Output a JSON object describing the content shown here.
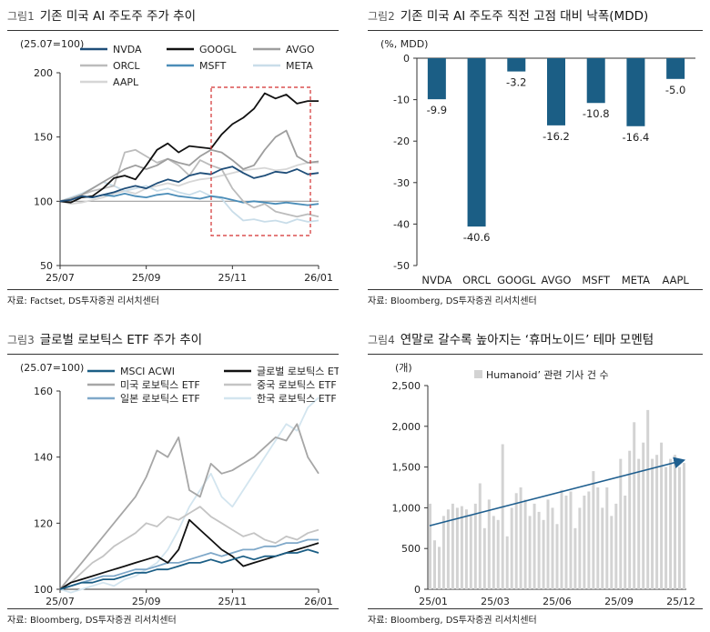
{
  "panels": [
    {
      "tag": "그림1",
      "title": "기존 미국 AI 주도주 주가 추이",
      "source": "자료: Factset, DS투자증권 리서치센터",
      "chart_data": {
        "type": "line",
        "unit": "(25.07=100)",
        "x_ticks": [
          "25/07",
          "25/09",
          "25/11",
          "26/01"
        ],
        "y_ticks": [
          50,
          100,
          150,
          200
        ],
        "ylim": [
          50,
          200
        ],
        "legend_placement": "top",
        "series": [
          {
            "name": "NVDA",
            "color": "#1f4e79",
            "values": [
              100,
              101,
              104,
              103,
              105,
              107,
              110,
              112,
              110,
              114,
              117,
              115,
              120,
              122,
              121,
              125,
              127,
              122,
              118,
              120,
              123,
              122,
              125,
              121,
              122
            ]
          },
          {
            "name": "GOOGL",
            "color": "#111111",
            "values": [
              100,
              99,
              103,
              104,
              110,
              118,
              120,
              117,
              128,
              140,
              145,
              138,
              143,
              142,
              141,
              152,
              160,
              165,
              172,
              184,
              180,
              183,
              176,
              178,
              178
            ]
          },
          {
            "name": "AVGO",
            "color": "#9e9e9e",
            "values": [
              100,
              102,
              105,
              110,
              115,
              120,
              125,
              128,
              125,
              128,
              133,
              130,
              128,
              135,
              140,
              138,
              132,
              125,
              128,
              140,
              150,
              155,
              135,
              130,
              131
            ]
          },
          {
            "name": "ORCL",
            "color": "#bcbcbc",
            "values": [
              100,
              102,
              105,
              108,
              110,
              112,
              138,
              140,
              135,
              130,
              133,
              128,
              120,
              132,
              128,
              125,
              110,
              100,
              95,
              98,
              92,
              90,
              88,
              90,
              88
            ]
          },
          {
            "name": "MSFT",
            "color": "#4b8db8",
            "values": [
              100,
              102,
              104,
              103,
              105,
              104,
              106,
              104,
              103,
              105,
              106,
              104,
              103,
              102,
              104,
              103,
              101,
              99,
              100,
              99,
              98,
              99,
              98,
              97,
              98
            ]
          },
          {
            "name": "META",
            "color": "#c9dde9",
            "values": [
              100,
              103,
              106,
              110,
              115,
              112,
              108,
              110,
              112,
              108,
              110,
              107,
              105,
              108,
              104,
              102,
              92,
              85,
              86,
              84,
              85,
              83,
              86,
              84,
              85
            ]
          },
          {
            "name": "AAPL",
            "color": "#d6d6d6",
            "values": [
              100,
              98,
              99,
              101,
              103,
              106,
              108,
              106,
              110,
              112,
              114,
              112,
              115,
              117,
              118,
              120,
              122,
              124,
              125,
              126,
              124,
              125,
              128,
              130,
              130
            ]
          }
        ]
      }
    },
    {
      "tag": "그림2",
      "title": "기존 미국 AI 주도주 직전 고점 대비 낙폭(MDD)",
      "source": "자료: Bloomberg, DS투자증권 리서치센터",
      "chart_data": {
        "type": "bar",
        "unit": "(%, MDD)",
        "categories": [
          "NVDA",
          "ORCL",
          "GOOGL",
          "AVGO",
          "MSFT",
          "META",
          "AAPL"
        ],
        "values": [
          -9.9,
          -40.6,
          -3.2,
          -16.2,
          -10.8,
          -16.4,
          -5.0
        ],
        "value_labels": [
          "-9.9",
          "-40.6",
          "-3.2",
          "-16.2",
          "-10.8",
          "-16.4",
          "-5.0"
        ],
        "y_ticks": [
          0,
          -10,
          -20,
          -30,
          -40,
          -50
        ],
        "ylim": [
          -50,
          0
        ],
        "bar_color": "#1b5e85"
      }
    },
    {
      "tag": "그림3",
      "title": "글로벌 로보틱스 ETF 주가 추이",
      "source": "자료: Bloomberg, DS투자증권 리서치센터",
      "chart_data": {
        "type": "line",
        "unit": "(25.07=100)",
        "x_ticks": [
          "25/07",
          "25/09",
          "25/11",
          "26/01"
        ],
        "y_ticks": [
          100,
          120,
          140,
          160
        ],
        "ylim": [
          100,
          160
        ],
        "legend_placement": "top",
        "series": [
          {
            "name": "MSCI ACWI",
            "color": "#1b5e85",
            "values": [
              100,
              101,
              102,
              102,
              103,
              103,
              104,
              105,
              105,
              106,
              106,
              107,
              108,
              108,
              109,
              108,
              109,
              110,
              109,
              110,
              110,
              111,
              111,
              112,
              111
            ]
          },
          {
            "name": "글로벌 로보틱스 ETF",
            "color": "#111111",
            "values": [
              100,
              102,
              103,
              104,
              105,
              106,
              107,
              108,
              109,
              110,
              108,
              112,
              121,
              118,
              115,
              112,
              110,
              107,
              108,
              109,
              110,
              111,
              112,
              113,
              114
            ]
          },
          {
            "name": "미국 로보틱스 ETF",
            "color": "#a6a6a6",
            "values": [
              100,
              104,
              108,
              112,
              116,
              120,
              124,
              128,
              134,
              142,
              140,
              146,
              130,
              128,
              138,
              135,
              136,
              138,
              140,
              143,
              146,
              145,
              150,
              140,
              135
            ]
          },
          {
            "name": "중국 로보틱스 ETF",
            "color": "#c4c4c4",
            "values": [
              100,
              102,
              105,
              108,
              110,
              113,
              115,
              117,
              120,
              119,
              122,
              121,
              123,
              125,
              122,
              120,
              118,
              116,
              117,
              115,
              114,
              116,
              115,
              117,
              118
            ]
          },
          {
            "name": "일본 로보틱스 ETF",
            "color": "#7fa8c9",
            "values": [
              100,
              101,
              102,
              103,
              104,
              104,
              105,
              106,
              106,
              107,
              108,
              108,
              109,
              110,
              111,
              110,
              111,
              112,
              112,
              113,
              113,
              114,
              114,
              115,
              115
            ]
          },
          {
            "name": "한국 로보틱스 ETF",
            "color": "#d3e5ef",
            "values": [
              100,
              99,
              100,
              101,
              102,
              101,
              103,
              104,
              106,
              108,
              112,
              118,
              125,
              130,
              135,
              128,
              125,
              130,
              135,
              140,
              145,
              150,
              148,
              155,
              158
            ]
          }
        ]
      }
    },
    {
      "tag": "그림4",
      "title": "연말로 갈수록 높아지는 ‘휴머노이드’ 테마 모멘텀",
      "source": "자료: Bloomberg, DS투자증권 리서치센터",
      "chart_data": {
        "type": "bar",
        "unit": "(개)",
        "legend": "Humanoid’ 관련 기사 건 수",
        "x_ticks": [
          "25/01",
          "25/03",
          "25/06",
          "25/09",
          "25/12"
        ],
        "y_ticks": [
          0,
          500,
          1000,
          1500,
          2000,
          2500
        ],
        "ylim": [
          0,
          2500
        ],
        "bar_color": "#d3d3d3",
        "trend_color": "#1f5f8f",
        "trend": [
          780,
          1580
        ],
        "values": [
          1050,
          600,
          520,
          900,
          980,
          1050,
          1000,
          1020,
          980,
          920,
          1050,
          1300,
          750,
          1100,
          900,
          850,
          1780,
          650,
          1000,
          1180,
          1250,
          1100,
          900,
          1050,
          950,
          850,
          1100,
          1000,
          800,
          1220,
          1150,
          1200,
          750,
          1000,
          1150,
          1200,
          1450,
          1250,
          1000,
          1250,
          900,
          1050,
          1600,
          1150,
          1700,
          2050,
          1600,
          1800,
          2200,
          1600,
          1650,
          1800,
          1500,
          1600,
          1650,
          1500,
          1550
        ]
      }
    }
  ]
}
